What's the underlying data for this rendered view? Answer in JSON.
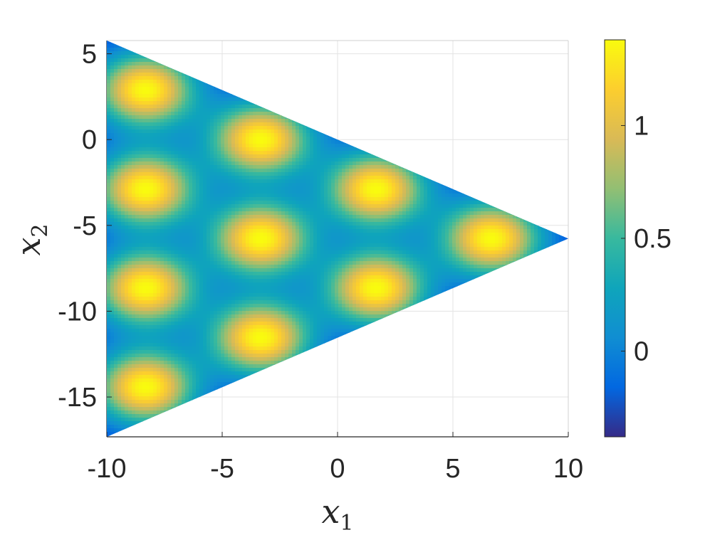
{
  "chart_data": {
    "type": "heatmap",
    "title": "",
    "xlabel": {
      "base": "x",
      "sub": "1"
    },
    "ylabel": {
      "base": "x",
      "sub": "2"
    },
    "xlim": [
      -10,
      10
    ],
    "ylim": [
      -17.32,
      5.77
    ],
    "x_ticks": [
      -10,
      -5,
      0,
      5,
      10
    ],
    "x_tick_labels": [
      "-10",
      "-5",
      "0",
      "5",
      "10"
    ],
    "y_ticks": [
      5,
      0,
      -5,
      -10,
      -15
    ],
    "y_tick_labels": [
      "5",
      "0",
      "-5",
      "-10",
      "-15"
    ],
    "grid": true,
    "domain_shape": "equilateral-triangle",
    "domain_vertices": [
      [
        -10,
        5.77
      ],
      [
        -10,
        -17.32
      ],
      [
        10,
        -5.77
      ]
    ],
    "peaks": [
      {
        "x": -8.33,
        "y": 2.89
      },
      {
        "x": -8.33,
        "y": -2.89
      },
      {
        "x": -8.33,
        "y": -8.66
      },
      {
        "x": -8.33,
        "y": -14.43
      },
      {
        "x": -3.33,
        "y": 0.0
      },
      {
        "x": -3.33,
        "y": -5.77
      },
      {
        "x": -3.33,
        "y": -11.55
      },
      {
        "x": 1.67,
        "y": -2.89
      },
      {
        "x": 1.67,
        "y": -8.66
      },
      {
        "x": 6.67,
        "y": -5.77
      }
    ],
    "peak_value": 1.38,
    "trough_value": -0.38,
    "colorbar": {
      "colormap": "parula",
      "range": [
        -0.38,
        1.38
      ],
      "ticks": [
        0,
        0.5,
        1
      ],
      "tick_labels": [
        "0",
        "0.5",
        "1"
      ]
    },
    "colors": {
      "parula_stops": [
        "#352a87",
        "#0268e1",
        "#108ed2",
        "#0fa5bb",
        "#38b99e",
        "#92bf73",
        "#d9ba56",
        "#fcce2e",
        "#f9fb0e"
      ]
    }
  }
}
